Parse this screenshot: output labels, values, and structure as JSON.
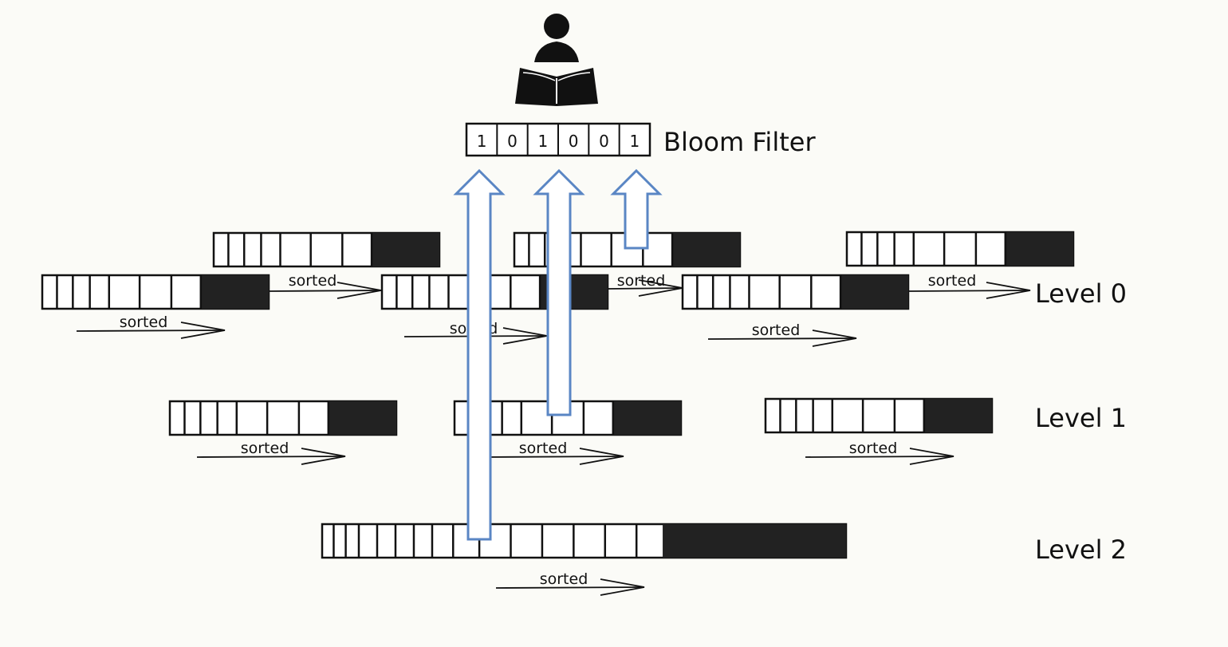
{
  "title": "Bloom Filter",
  "bloom_bits": [
    "1",
    "0",
    "1",
    "0",
    "0",
    "1"
  ],
  "levels": [
    {
      "label": "Level 0"
    },
    {
      "label": "Level 1"
    },
    {
      "label": "Level 2"
    }
  ],
  "sorted_label": "sorted",
  "colors": {
    "background": "#fbfbf7",
    "ink": "#111111",
    "arrow_stroke": "#5a86c4",
    "arrow_fill": "#ffffff"
  },
  "icons": [
    "reader-icon"
  ]
}
